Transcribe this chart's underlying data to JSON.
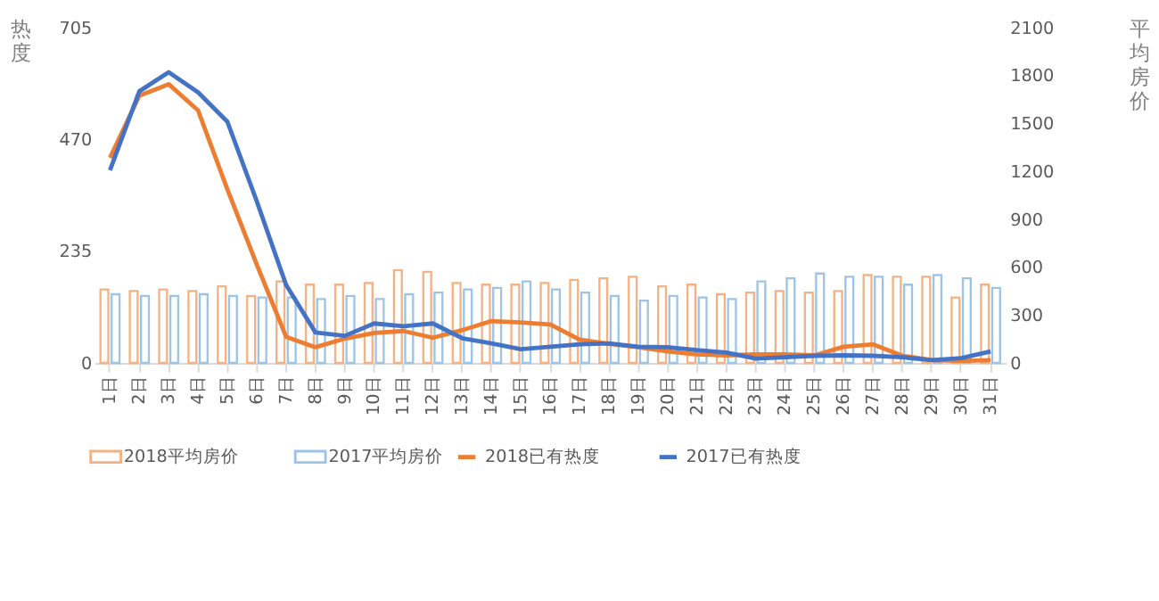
{
  "chart_data": {
    "type": "bar",
    "ylabel": "热度",
    "y2label": "平均房价",
    "categories": [
      "1日",
      "2日",
      "3日",
      "4日",
      "5日",
      "6日",
      "7日",
      "8日",
      "9日",
      "10日",
      "11日",
      "12日",
      "13日",
      "14日",
      "15日",
      "16日",
      "17日",
      "18日",
      "19日",
      "20日",
      "21日",
      "22日",
      "23日",
      "24日",
      "25日",
      "26日",
      "27日",
      "28日",
      "29日",
      "30日",
      "31日"
    ],
    "series": [
      {
        "name": "2018平均房价",
        "axis": "y2",
        "color": "#f4b183",
        "values": [
          460,
          450,
          460,
          450,
          480,
          420,
          510,
          490,
          490,
          500,
          580,
          570,
          500,
          490,
          490,
          500,
          520,
          530,
          540,
          480,
          490,
          430,
          440,
          450,
          440,
          450,
          550,
          540,
          540,
          410,
          490
        ]
      },
      {
        "name": "2017平均房价",
        "axis": "y2",
        "color": "#9dc3e6",
        "values": [
          430,
          420,
          420,
          430,
          420,
          410,
          410,
          400,
          420,
          400,
          430,
          440,
          460,
          470,
          510,
          460,
          440,
          420,
          390,
          420,
          410,
          400,
          510,
          530,
          560,
          540,
          540,
          490,
          550,
          530,
          470
        ]
      },
      {
        "name": "2018已有热度",
        "type": "line",
        "color": "#ed7d31",
        "values": [
          431,
          562,
          586,
          531,
          365,
          207,
          55,
          33,
          51,
          63,
          67,
          53,
          69,
          88,
          85,
          81,
          49,
          40,
          33,
          24,
          18,
          16,
          18,
          18,
          16,
          34,
          39,
          15,
          6,
          4,
          6
        ]
      },
      {
        "name": "2017已有热度",
        "type": "line",
        "color": "#4472c4",
        "values": [
          405,
          571,
          611,
          569,
          507,
          340,
          164,
          64,
          57,
          83,
          77,
          83,
          52,
          41,
          29,
          34,
          39,
          41,
          34,
          33,
          27,
          22,
          9,
          12,
          15,
          16,
          15,
          12,
          6,
          10,
          24
        ]
      }
    ],
    "ylim": [
      0,
      705
    ],
    "yticks": [
      0,
      235,
      470,
      705
    ],
    "y2lim": [
      0,
      2100
    ],
    "y2ticks": [
      0,
      300,
      600,
      900,
      1200,
      1500,
      1800,
      2100
    ],
    "legend": "bottom",
    "grid": false
  }
}
